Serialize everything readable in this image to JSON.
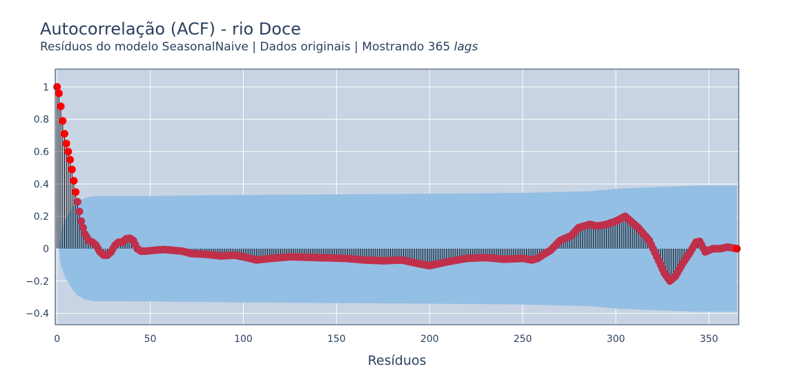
{
  "chart_data": {
    "type": "scatter",
    "title": "Autocorrelação (ACF) - rio Doce",
    "subtitle_main": "Resíduos do modelo SeasonalNaive | Dados originais | Mostrando 365",
    "subtitle_italic": "lags",
    "xlabel": "Resíduos",
    "ylabel": "",
    "xlim": [
      -1,
      366
    ],
    "ylim": [
      -0.47,
      1.11
    ],
    "x_ticks": [
      0,
      50,
      100,
      150,
      200,
      250,
      300,
      350
    ],
    "y_ticks": [
      -0.4,
      -0.2,
      0,
      0.2,
      0.4,
      0.6,
      0.8,
      1
    ],
    "y_tick_labels": [
      "−0.4",
      "−0.2",
      "0",
      "0.2",
      "0.4",
      "0.6",
      "0.8",
      "1"
    ],
    "grid": true,
    "colors": {
      "plot_background": "#c8d4e3",
      "confidence_band": "#94bfe5",
      "stem": "#000000",
      "marker_significant": "#ff0000",
      "marker_nonsignificant": "#c0304b",
      "text": "#2a3f5f"
    },
    "acf_anchors": [
      [
        0,
        1.0
      ],
      [
        1,
        0.96
      ],
      [
        2,
        0.88
      ],
      [
        3,
        0.79
      ],
      [
        4,
        0.71
      ],
      [
        5,
        0.65
      ],
      [
        6,
        0.6
      ],
      [
        7,
        0.55
      ],
      [
        8,
        0.49
      ],
      [
        9,
        0.42
      ],
      [
        10,
        0.35
      ],
      [
        11,
        0.29
      ],
      [
        12,
        0.23
      ],
      [
        13,
        0.17
      ],
      [
        14,
        0.13
      ],
      [
        15,
        0.09
      ],
      [
        17,
        0.05
      ],
      [
        19,
        0.04
      ],
      [
        21,
        0.02
      ],
      [
        23,
        -0.02
      ],
      [
        25,
        -0.04
      ],
      [
        27,
        -0.04
      ],
      [
        29,
        -0.02
      ],
      [
        31,
        0.02
      ],
      [
        33,
        0.04
      ],
      [
        35,
        0.04
      ],
      [
        37,
        0.06
      ],
      [
        39,
        0.065
      ],
      [
        41,
        0.05
      ],
      [
        43,
        0.0
      ],
      [
        45,
        -0.015
      ],
      [
        48,
        -0.015
      ],
      [
        52,
        -0.01
      ],
      [
        57,
        -0.005
      ],
      [
        62,
        -0.01
      ],
      [
        67,
        -0.015
      ],
      [
        72,
        -0.03
      ],
      [
        80,
        -0.035
      ],
      [
        88,
        -0.045
      ],
      [
        95,
        -0.04
      ],
      [
        100,
        -0.05
      ],
      [
        107,
        -0.07
      ],
      [
        115,
        -0.06
      ],
      [
        125,
        -0.05
      ],
      [
        140,
        -0.055
      ],
      [
        155,
        -0.06
      ],
      [
        165,
        -0.07
      ],
      [
        175,
        -0.075
      ],
      [
        185,
        -0.07
      ],
      [
        195,
        -0.095
      ],
      [
        200,
        -0.105
      ],
      [
        210,
        -0.08
      ],
      [
        220,
        -0.06
      ],
      [
        230,
        -0.055
      ],
      [
        240,
        -0.065
      ],
      [
        250,
        -0.06
      ],
      [
        255,
        -0.07
      ],
      [
        258,
        -0.06
      ],
      [
        262,
        -0.03
      ],
      [
        265,
        -0.01
      ],
      [
        270,
        0.05
      ],
      [
        276,
        0.08
      ],
      [
        280,
        0.13
      ],
      [
        286,
        0.15
      ],
      [
        290,
        0.14
      ],
      [
        295,
        0.15
      ],
      [
        300,
        0.17
      ],
      [
        305,
        0.2
      ],
      [
        308,
        0.17
      ],
      [
        312,
        0.13
      ],
      [
        318,
        0.05
      ],
      [
        322,
        -0.05
      ],
      [
        326,
        -0.15
      ],
      [
        329,
        -0.2
      ],
      [
        332,
        -0.17
      ],
      [
        336,
        -0.09
      ],
      [
        340,
        -0.02
      ],
      [
        343,
        0.04
      ],
      [
        345,
        0.045
      ],
      [
        348,
        -0.02
      ],
      [
        352,
        0.0
      ],
      [
        356,
        0.0
      ],
      [
        360,
        0.01
      ],
      [
        365,
        0.0
      ]
    ],
    "confidence_band_anchors": [
      [
        1,
        0.0
      ],
      [
        2,
        0.1
      ],
      [
        4,
        0.17
      ],
      [
        6,
        0.21
      ],
      [
        8,
        0.25
      ],
      [
        11,
        0.29
      ],
      [
        15,
        0.315
      ],
      [
        20,
        0.325
      ],
      [
        40,
        0.325
      ],
      [
        100,
        0.332
      ],
      [
        200,
        0.34
      ],
      [
        250,
        0.345
      ],
      [
        285,
        0.355
      ],
      [
        300,
        0.37
      ],
      [
        320,
        0.38
      ],
      [
        345,
        0.39
      ],
      [
        365,
        0.39
      ]
    ]
  }
}
